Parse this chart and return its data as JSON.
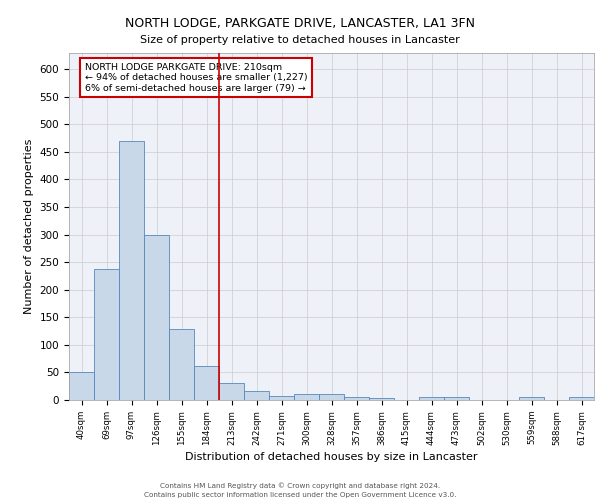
{
  "title1": "NORTH LODGE, PARKGATE DRIVE, LANCASTER, LA1 3FN",
  "title2": "Size of property relative to detached houses in Lancaster",
  "xlabel": "Distribution of detached houses by size in Lancaster",
  "ylabel": "Number of detached properties",
  "bar_labels": [
    "40sqm",
    "69sqm",
    "97sqm",
    "126sqm",
    "155sqm",
    "184sqm",
    "213sqm",
    "242sqm",
    "271sqm",
    "300sqm",
    "328sqm",
    "357sqm",
    "386sqm",
    "415sqm",
    "444sqm",
    "473sqm",
    "502sqm",
    "530sqm",
    "559sqm",
    "588sqm",
    "617sqm"
  ],
  "bar_values": [
    50,
    237,
    470,
    300,
    128,
    62,
    30,
    17,
    8,
    10,
    10,
    6,
    3,
    0,
    5,
    5,
    0,
    0,
    6,
    0,
    6
  ],
  "bar_color": "#c8d8e8",
  "bar_edge_color": "#5588bb",
  "grid_color": "#cccccc",
  "bg_color": "#eef2f8",
  "annotation_text": "NORTH LODGE PARKGATE DRIVE: 210sqm\n← 94% of detached houses are smaller (1,227)\n6% of semi-detached houses are larger (79) →",
  "annotation_box_color": "#ffffff",
  "annotation_box_edge": "#cc0000",
  "vline_color": "#cc0000",
  "ylim": [
    0,
    630
  ],
  "yticks": [
    0,
    50,
    100,
    150,
    200,
    250,
    300,
    350,
    400,
    450,
    500,
    550,
    600
  ],
  "footer1": "Contains HM Land Registry data © Crown copyright and database right 2024.",
  "footer2": "Contains public sector information licensed under the Open Government Licence v3.0."
}
